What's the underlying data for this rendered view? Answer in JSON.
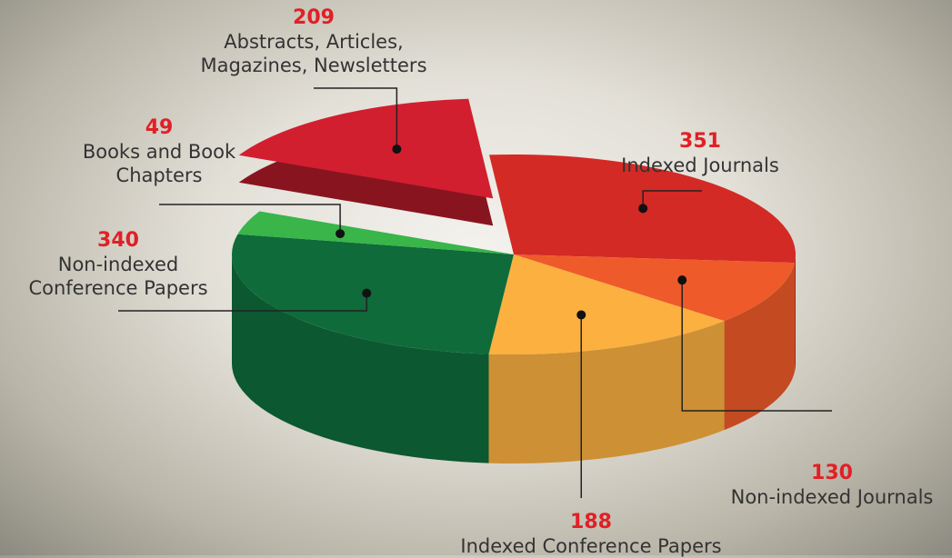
{
  "chart_data": {
    "type": "pie",
    "categories": [
      "Indexed Journals",
      "Non-indexed Journals",
      "Indexed Conference Papers",
      "Non-indexed Conference Papers",
      "Books and Book Chapters",
      "Abstracts, Articles, Magazines, Newsletters"
    ],
    "values": [
      351,
      130,
      188,
      340,
      49,
      209
    ],
    "colors": [
      "#d32a26",
      "#ef5a2a",
      "#fbb040",
      "#0f6b3a",
      "#39b54a",
      "#d11f2f"
    ],
    "exploded": [
      5
    ]
  }
}
